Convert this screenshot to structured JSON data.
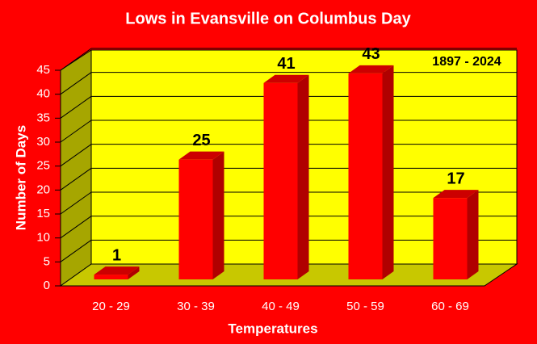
{
  "chart_data": {
    "type": "bar",
    "title": "Lows in Evansville on Columbus Day",
    "annotation": "1897 - 2024",
    "x_label": "Temperatures",
    "y_label": "Number of Days",
    "categories": [
      "20 - 29",
      "30 - 39",
      "40 - 49",
      "50 - 59",
      "60 - 69"
    ],
    "values": [
      1,
      25,
      41,
      43,
      17
    ],
    "color": "#ff0000",
    "ylim": [
      0,
      45
    ],
    "yticks": [
      0,
      5,
      10,
      15,
      20,
      25,
      30,
      35,
      40,
      45
    ],
    "grid": true
  }
}
